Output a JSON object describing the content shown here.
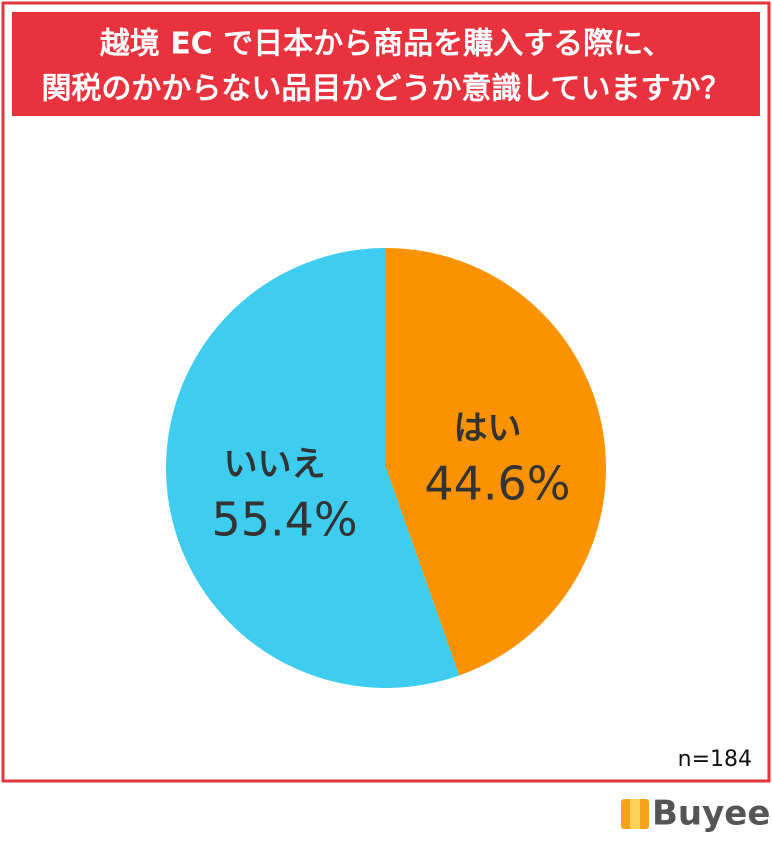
{
  "chart_data": {
    "type": "pie",
    "title": [
      "越境 EC で日本から商品を購入する際に、",
      "関税のかからない品目かどうか意識していますか？"
    ],
    "categories": [
      "はい",
      "いいえ"
    ],
    "values": [
      44.6,
      55.4
    ],
    "value_labels": [
      "44.6%",
      "55.4%"
    ],
    "colors": [
      "#fb9200",
      "#3ecdee"
    ],
    "note": "n=184",
    "brand": "Buyee"
  }
}
